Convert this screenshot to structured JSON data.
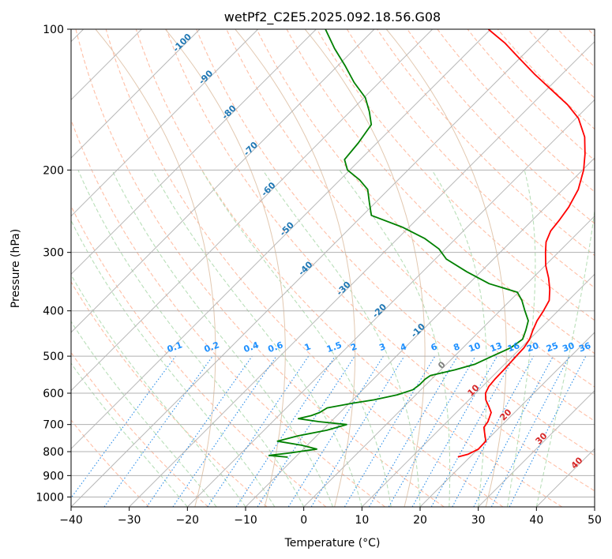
{
  "chart_data": {
    "type": "line",
    "subtype": "skew-t log-p diagram",
    "title": "wetPf2_C2E5.2025.092.18.56.G08",
    "xlabel": "Temperature (°C)",
    "ylabel": "Pressure (hPa)",
    "xlim": [
      -40,
      50
    ],
    "ylim": [
      1050,
      100
    ],
    "y_scale": "log",
    "x_ticks": [
      -40,
      -30,
      -20,
      -10,
      0,
      10,
      20,
      30,
      40,
      50
    ],
    "x_tick_labels": [
      "−40",
      "−30",
      "−20",
      "−10",
      "0",
      "10",
      "20",
      "30",
      "40",
      "50"
    ],
    "y_ticks": [
      100,
      200,
      300,
      400,
      500,
      600,
      700,
      800,
      900,
      1000
    ],
    "y_tick_labels": [
      "100",
      "200",
      "300",
      "400",
      "500",
      "600",
      "700",
      "800",
      "900",
      "1000"
    ],
    "grid": true,
    "series": [
      {
        "role": "temperature",
        "color": "#ff0000",
        "points": [
          [
            821,
            17.9
          ],
          [
            810,
            19.2
          ],
          [
            790,
            20.1
          ],
          [
            760,
            20.0
          ],
          [
            730,
            18.4
          ],
          [
            710,
            17.3
          ],
          [
            690,
            17.0
          ],
          [
            660,
            16.0
          ],
          [
            640,
            14.5
          ],
          [
            620,
            12.9
          ],
          [
            600,
            11.7
          ],
          [
            580,
            11.1
          ],
          [
            560,
            10.9
          ],
          [
            530,
            10.8
          ],
          [
            500,
            10.6
          ],
          [
            480,
            10.5
          ],
          [
            460,
            10.0
          ],
          [
            440,
            9.0
          ],
          [
            420,
            8.1
          ],
          [
            400,
            7.5
          ],
          [
            380,
            6.7
          ],
          [
            360,
            4.9
          ],
          [
            340,
            2.7
          ],
          [
            320,
            0.1
          ],
          [
            300,
            -2.2
          ],
          [
            285,
            -3.9
          ],
          [
            270,
            -5.0
          ],
          [
            255,
            -5.4
          ],
          [
            240,
            -6.0
          ],
          [
            220,
            -7.4
          ],
          [
            200,
            -9.8
          ],
          [
            185,
            -12.3
          ],
          [
            170,
            -15.3
          ],
          [
            155,
            -19.6
          ],
          [
            145,
            -23.8
          ],
          [
            135,
            -29.0
          ],
          [
            125,
            -34.6
          ],
          [
            115,
            -40.3
          ],
          [
            107,
            -45.2
          ],
          [
            100,
            -50.4
          ]
        ]
      },
      {
        "role": "dewpoint",
        "color": "#008000",
        "points": [
          [
            822,
            -11.3
          ],
          [
            815,
            -14.8
          ],
          [
            805,
            -11.6
          ],
          [
            790,
            -7.7
          ],
          [
            775,
            -11.0
          ],
          [
            760,
            -15.8
          ],
          [
            740,
            -13.2
          ],
          [
            720,
            -9.2
          ],
          [
            700,
            -6.8
          ],
          [
            690,
            -12.1
          ],
          [
            680,
            -16.1
          ],
          [
            670,
            -14.4
          ],
          [
            660,
            -13.5
          ],
          [
            645,
            -13.0
          ],
          [
            630,
            -9.4
          ],
          [
            620,
            -6.3
          ],
          [
            605,
            -3.2
          ],
          [
            590,
            -1.4
          ],
          [
            575,
            -1.1
          ],
          [
            560,
            -1.1
          ],
          [
            550,
            -0.8
          ],
          [
            535,
            2.4
          ],
          [
            520,
            4.9
          ],
          [
            500,
            6.5
          ],
          [
            480,
            8.2
          ],
          [
            460,
            8.8
          ],
          [
            440,
            7.8
          ],
          [
            420,
            6.6
          ],
          [
            400,
            4.3
          ],
          [
            380,
            2.0
          ],
          [
            365,
            -0.2
          ],
          [
            350,
            -6.5
          ],
          [
            330,
            -12.4
          ],
          [
            310,
            -18.1
          ],
          [
            295,
            -21.1
          ],
          [
            280,
            -25.4
          ],
          [
            265,
            -31.1
          ],
          [
            250,
            -38.5
          ],
          [
            235,
            -41.0
          ],
          [
            220,
            -43.6
          ],
          [
            210,
            -46.6
          ],
          [
            200,
            -50.4
          ],
          [
            190,
            -52.7
          ],
          [
            175,
            -53.2
          ],
          [
            160,
            -54.1
          ],
          [
            150,
            -56.7
          ],
          [
            140,
            -59.8
          ],
          [
            130,
            -64.3
          ],
          [
            120,
            -68.6
          ],
          [
            110,
            -73.5
          ],
          [
            100,
            -78.4
          ]
        ]
      }
    ],
    "dry_adiabat_labels": [
      "-100",
      "-90",
      "-80",
      "-70",
      "-60",
      "-50",
      "-40",
      "-30",
      "-20",
      "-10"
    ],
    "dry_adiabat_values": [
      -100,
      -90,
      -80,
      -70,
      -60,
      -50,
      -40,
      -30,
      -20,
      -10
    ],
    "moist_adiabat_labels": [
      "0",
      "10",
      "20",
      "30",
      "40"
    ],
    "moist_adiabat_values": [
      0,
      10,
      20,
      30,
      40
    ],
    "mixing_ratio_labels": [
      "0.1",
      "0.2",
      "0.4",
      "0.6",
      "1",
      "1.5",
      "2",
      "3",
      "4",
      "6",
      "8",
      "10",
      "13",
      "16",
      "20",
      "25",
      "30",
      "36"
    ],
    "mixing_ratio_values": [
      0.1,
      0.2,
      0.4,
      0.6,
      1,
      1.5,
      2,
      3,
      4,
      6,
      8,
      10,
      13,
      16,
      20,
      25,
      30,
      36
    ]
  }
}
